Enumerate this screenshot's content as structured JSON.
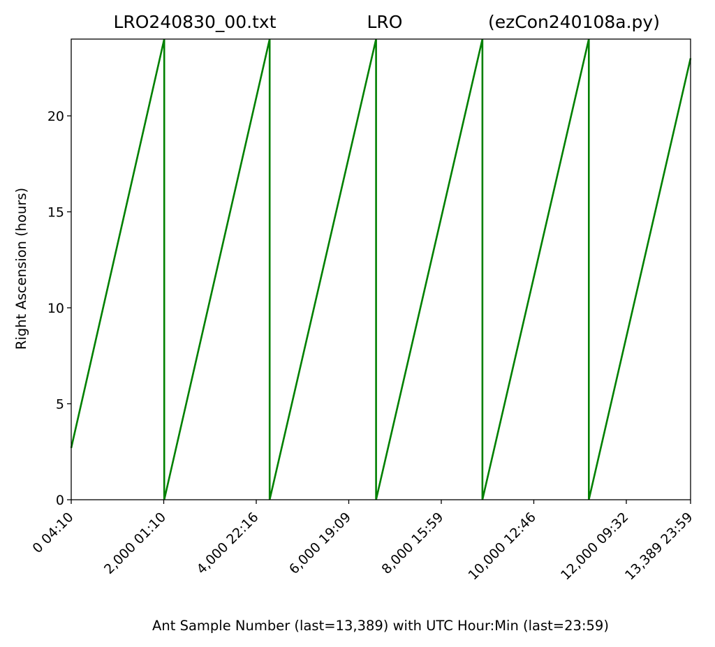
{
  "chart_data": {
    "type": "line",
    "title_parts": [
      "LRO240830_00.txt",
      "LRO",
      "(ezCon240108a.py)"
    ],
    "xlabel": "Ant Sample Number (last=13,389) with UTC Hour:Min (last=23:59)",
    "ylabel": "Right Ascension (hours)",
    "xlim": [
      0,
      13389
    ],
    "ylim": [
      0,
      24
    ],
    "grid": false,
    "x_ticks": [
      {
        "value": 0,
        "label": "0  04:10"
      },
      {
        "value": 2000,
        "label": "2,000  01:10"
      },
      {
        "value": 4000,
        "label": "4,000  22:16"
      },
      {
        "value": 6000,
        "label": "6,000  19:09"
      },
      {
        "value": 8000,
        "label": "8,000  15:59"
      },
      {
        "value": 10000,
        "label": "10,000  12:46"
      },
      {
        "value": 12000,
        "label": "12,000  09:32"
      },
      {
        "value": 13389,
        "label": "13,389  23:59"
      }
    ],
    "y_ticks": [
      {
        "value": 0,
        "label": "0"
      },
      {
        "value": 5,
        "label": "5"
      },
      {
        "value": 10,
        "label": "10"
      },
      {
        "value": 15,
        "label": "15"
      },
      {
        "value": 20,
        "label": "20"
      }
    ],
    "series": [
      {
        "color": "#008000",
        "x": [
          0,
          2010,
          2010,
          4290,
          4290,
          6590,
          6590,
          8890,
          8890,
          11190,
          11190,
          13389
        ],
        "y": [
          2.7,
          24,
          0,
          24,
          0,
          24,
          0,
          24,
          0,
          24,
          0,
          23
        ]
      }
    ]
  }
}
